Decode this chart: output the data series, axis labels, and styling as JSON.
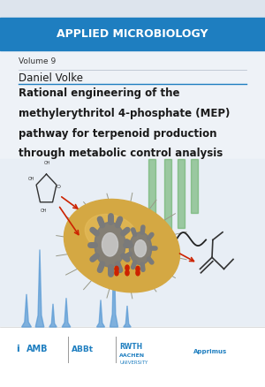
{
  "bg_color": "#eef2f7",
  "header_bg": "#1e7ec0",
  "header_text": "APPLIED MICROBIOLOGY",
  "header_text_color": "#ffffff",
  "volume_text": "Volume 9",
  "volume_color": "#333333",
  "author_text": "Daniel Volke",
  "author_color": "#1a1a1a",
  "title_line1": "Rational engineering of the",
  "title_line2": "methylerythritol 4-phosphate (MEP)",
  "title_line3": "pathway for terpenoid production",
  "title_line4": "through metabolic control analysis",
  "title_color": "#1a1a1a",
  "accent_blue": "#1e7ec0",
  "red_arrow": "#cc2200",
  "bact_color": "#d4a843",
  "gear_color": "#7a7a7a",
  "gear_inner": "#cccccc",
  "footer_bg": "#ffffff",
  "logo_color": "#1e7ec0",
  "green_bar": "#5aaa5a",
  "blue_peak": "#5b9bd5"
}
